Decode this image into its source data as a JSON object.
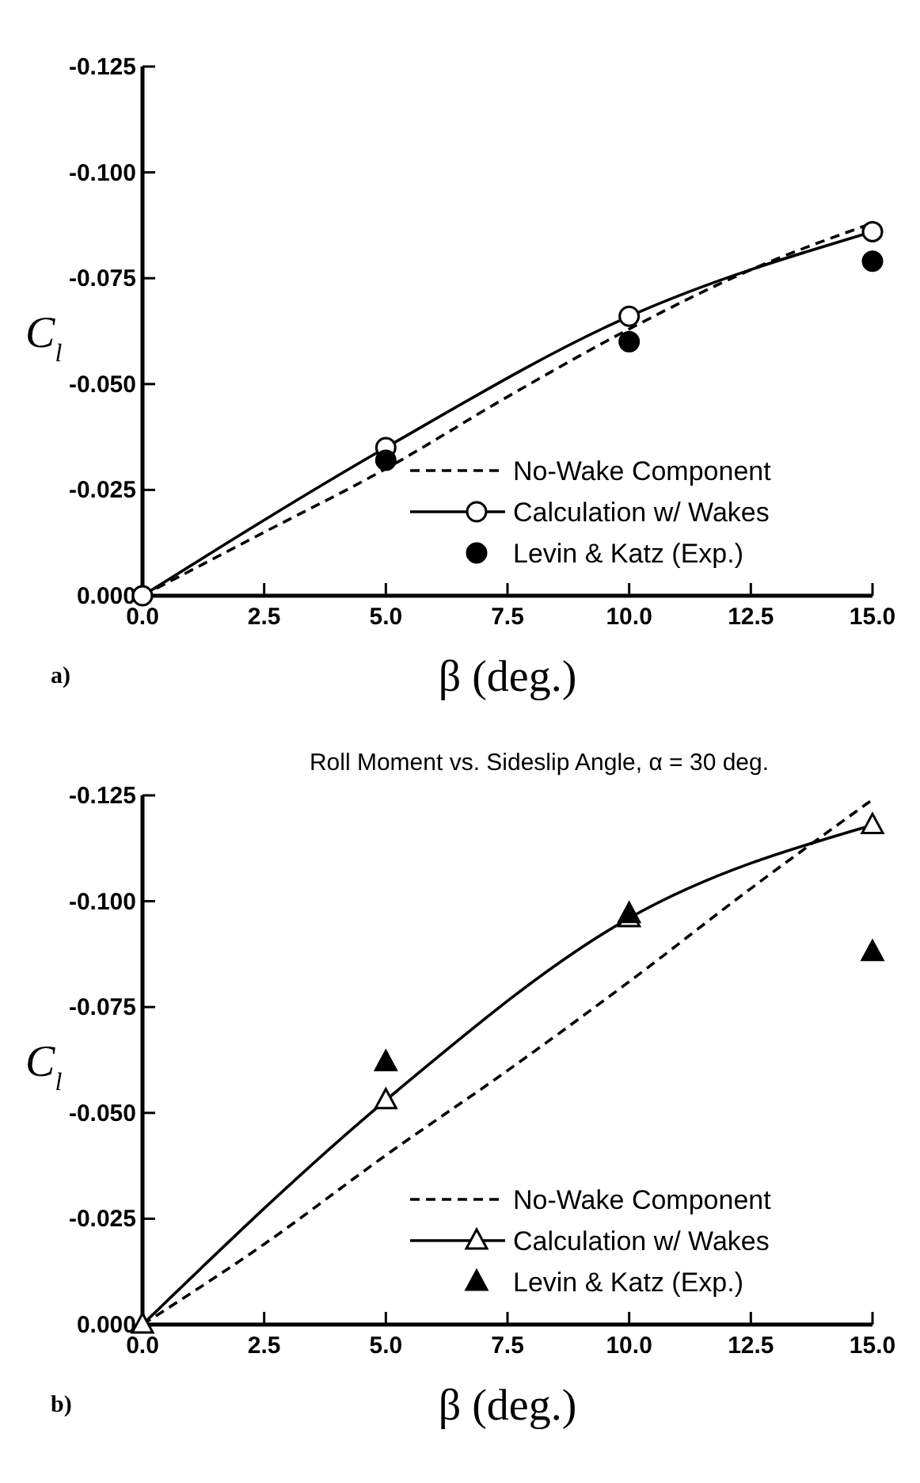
{
  "chart_data": [
    {
      "type": "line",
      "xlabel": "β (deg.)",
      "ylabel": "C$_{l}$",
      "annotations": [
        "a)"
      ],
      "xlim": [
        0,
        15
      ],
      "xticks": [
        {
          "value": 0,
          "label": "0.0"
        },
        {
          "value": 2.5,
          "label": "2.5"
        },
        {
          "value": 5,
          "label": "5.0"
        },
        {
          "value": 7.5,
          "label": "7.5"
        },
        {
          "value": 10,
          "label": "10.0"
        },
        {
          "value": 12.5,
          "label": "12.5"
        },
        {
          "value": 15,
          "label": "15.0"
        }
      ],
      "ylim": [
        0,
        -0.125
      ],
      "yticks": [
        {
          "value": 0,
          "label": "0.000"
        },
        {
          "value": -0.025,
          "label": "-0.025"
        },
        {
          "value": -0.05,
          "label": "-0.050"
        },
        {
          "value": -0.075,
          "label": "-0.075"
        },
        {
          "value": -0.1,
          "label": "-0.100"
        },
        {
          "value": -0.125,
          "label": "-0.125"
        }
      ],
      "legend": "bottom right",
      "grid": false,
      "series": [
        {
          "name": "No-Wake Component",
          "type": "line",
          "color": "#000000",
          "line_style": "dashed",
          "marker": "none",
          "x": [
            0,
            2.5,
            5,
            7.5,
            10,
            12.5,
            15
          ],
          "values": [
            0,
            -0.015,
            -0.03,
            -0.047,
            -0.063,
            -0.077,
            -0.088
          ]
        },
        {
          "name": "Calculation w/ Wakes",
          "type": "line",
          "color": "#000000",
          "line_style": "solid",
          "marker": "circle",
          "x": [
            0,
            5,
            10,
            15
          ],
          "values": [
            0,
            -0.035,
            -0.066,
            -0.086
          ]
        },
        {
          "name": "Levin & Katz (Exp.)",
          "type": "scatter",
          "color": "#000000",
          "marker": "circle",
          "x": [
            5,
            10,
            15
          ],
          "values": [
            -0.032,
            -0.06,
            -0.079
          ]
        }
      ]
    },
    {
      "type": "line",
      "title": "Roll Moment vs. Sideslip Angle, α = 30 deg.",
      "xlabel": "β (deg.)",
      "ylabel": "C$_{l}$",
      "annotations": [
        "b)"
      ],
      "xlim": [
        0,
        15
      ],
      "xticks": [
        {
          "value": 0,
          "label": "0.0"
        },
        {
          "value": 2.5,
          "label": "2.5"
        },
        {
          "value": 5,
          "label": "5.0"
        },
        {
          "value": 7.5,
          "label": "7.5"
        },
        {
          "value": 10,
          "label": "10.0"
        },
        {
          "value": 12.5,
          "label": "12.5"
        },
        {
          "value": 15,
          "label": "15.0"
        }
      ],
      "ylim": [
        0,
        -0.125
      ],
      "yticks": [
        {
          "value": 0,
          "label": "0.000"
        },
        {
          "value": -0.025,
          "label": "-0.025"
        },
        {
          "value": -0.05,
          "label": "-0.050"
        },
        {
          "value": -0.075,
          "label": "-0.075"
        },
        {
          "value": -0.1,
          "label": "-0.100"
        },
        {
          "value": -0.125,
          "label": "-0.125"
        }
      ],
      "legend": "bottom right",
      "grid": false,
      "series": [
        {
          "name": "No-Wake Component",
          "type": "line",
          "color": "#000000",
          "line_style": "dashed",
          "marker": "none",
          "x": [
            0,
            2.5,
            5,
            7.5,
            10,
            12.5,
            15
          ],
          "values": [
            0,
            -0.019,
            -0.04,
            -0.06,
            -0.081,
            -0.103,
            -0.124
          ]
        },
        {
          "name": "Calculation w/ Wakes",
          "type": "line",
          "color": "#000000",
          "line_style": "solid",
          "marker": "triangle",
          "x": [
            0,
            5,
            10,
            15
          ],
          "values": [
            0,
            -0.053,
            -0.096,
            -0.118
          ]
        },
        {
          "name": "Levin & Katz (Exp.)",
          "type": "scatter",
          "color": "#000000",
          "marker": "triangle",
          "x": [
            5,
            10,
            15
          ],
          "values": [
            -0.062,
            -0.097,
            -0.088
          ]
        }
      ]
    }
  ]
}
